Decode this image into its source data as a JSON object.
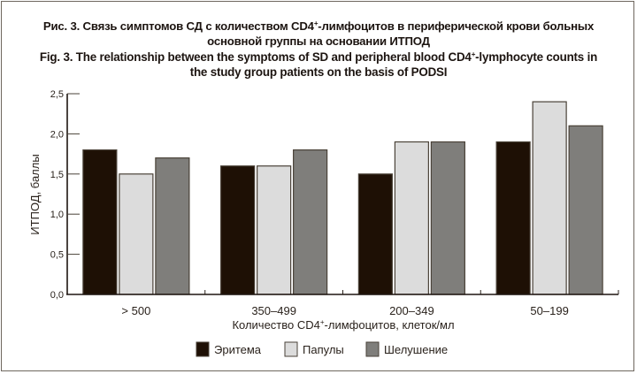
{
  "caption": {
    "ru_line1_pre": "Рис. 3. Связь  симптомов СД с количеством CD4",
    "ru_line1_sup": "+",
    "ru_line1_post": "-лимфоцитов в периферической крови больных",
    "ru_line2": "основной группы на основании ИТПОД",
    "en_line1_pre": "Fig. 3. The relationship between the symptoms of SD and peripheral blood CD4",
    "en_line1_sup": "+",
    "en_line1_post": "-lymphocyte counts in",
    "en_line2": "the study group patients on the basis of PODSI"
  },
  "chart_data": {
    "type": "bar",
    "title": "Связь симптомов СД с количеством CD4+-лимфоцитов в периферической крови больных основной группы на основании ИТПОД",
    "xlabel_pre": "Количество  CD4",
    "xlabel_sup": "+",
    "xlabel_post": "-лимфоцитов, клеток/мл",
    "xlabel": "Количество CD4+-лимфоцитов, клеток/мл",
    "ylabel": "ИТПОД, баллы",
    "ylim": [
      0,
      2.5
    ],
    "yticks": [
      0,
      0.5,
      1.0,
      1.5,
      2.0,
      2.5
    ],
    "ytick_labels": [
      "0,0",
      "0,5",
      "1,0",
      "1,5",
      "2,0",
      "2,5"
    ],
    "categories": [
      "> 500",
      "350–499",
      "200–349",
      "50–199"
    ],
    "series": [
      {
        "name": "Эритема",
        "color": "#1e1005",
        "values": [
          1.8,
          1.6,
          1.5,
          1.9
        ]
      },
      {
        "name": "Папулы",
        "color": "#dcdcdc",
        "values": [
          1.5,
          1.6,
          1.9,
          2.4
        ]
      },
      {
        "name": "Шелушение",
        "color": "#7f7e7b",
        "values": [
          1.7,
          1.8,
          1.9,
          2.1
        ]
      }
    ],
    "grid": false,
    "legend_position": "bottom"
  }
}
